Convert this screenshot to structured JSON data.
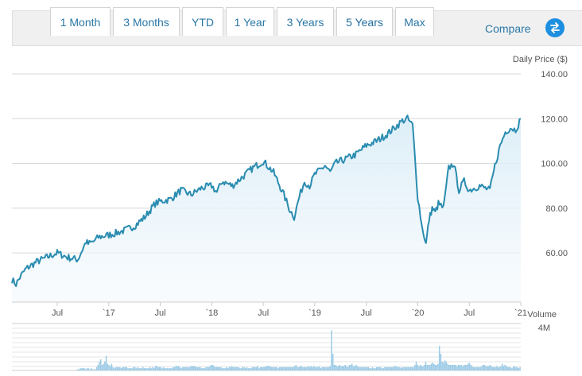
{
  "tabs": [
    {
      "label": "1 Month"
    },
    {
      "label": "3 Months"
    },
    {
      "label": "YTD"
    },
    {
      "label": "1 Year"
    },
    {
      "label": "3 Years"
    },
    {
      "label": "5 Years",
      "active": true
    },
    {
      "label": "Max"
    }
  ],
  "compare": {
    "label": "Compare",
    "icon": "swap-arrows-icon",
    "color": "#1d8fe0"
  },
  "chart_data": {
    "type": "area",
    "ylabel": "Daily Price ($)",
    "y_ticks": [
      "140.00",
      "120.00",
      "100.00",
      "80.00",
      "60.00"
    ],
    "ylim": [
      38,
      140
    ],
    "x_tick_labels": [
      "Jul",
      "`17",
      "Jul",
      "`18",
      "Jul",
      "`19",
      "Jul",
      "`20",
      "Jul",
      "`21"
    ],
    "x_tick_values": [
      2016.5,
      2017.0,
      2017.5,
      2018.0,
      2018.5,
      2019.0,
      2019.5,
      2020.0,
      2020.5,
      2021.0
    ],
    "xlim": [
      2016.06,
      2021.0
    ],
    "grid": true,
    "line_color": "#2a8cb0",
    "series": [
      {
        "x": [
          2016.06,
          2016.1,
          2016.15,
          2016.2,
          2016.3,
          2016.4,
          2016.5,
          2016.6,
          2016.7,
          2016.78,
          2016.8,
          2016.85,
          2016.9,
          2017.0,
          2017.08,
          2017.15,
          2017.25,
          2017.35,
          2017.45,
          2017.5,
          2017.6,
          2017.7,
          2017.8,
          2017.9,
          2018.0,
          2018.05,
          2018.1,
          2018.2,
          2018.3,
          2018.4,
          2018.5,
          2018.6,
          2018.7,
          2018.75,
          2018.8,
          2018.85,
          2018.9,
          2018.95,
          2019.0,
          2019.1,
          2019.15,
          2019.2,
          2019.3,
          2019.4,
          2019.5,
          2019.6,
          2019.7,
          2019.8,
          2019.85,
          2019.9,
          2019.95,
          2020.0,
          2020.04,
          2020.08,
          2020.11,
          2020.14,
          2020.17,
          2020.2,
          2020.25,
          2020.3,
          2020.35,
          2020.4,
          2020.45,
          2020.5,
          2020.6,
          2020.7,
          2020.75,
          2020.8,
          2020.85,
          2020.9,
          2020.95,
          2021.0
        ],
        "y": [
          48,
          46,
          50,
          53,
          56,
          58,
          60,
          58,
          57,
          65,
          64,
          65,
          67,
          68,
          69,
          70,
          72,
          76,
          82,
          83,
          84,
          88,
          86,
          89,
          90,
          87,
          92,
          90,
          94,
          98,
          101,
          96,
          86,
          80,
          76,
          85,
          92,
          90,
          95,
          99,
          96,
          100,
          102,
          104,
          108,
          110,
          113,
          117,
          119,
          120,
          117,
          85,
          72,
          64,
          75,
          80,
          78,
          82,
          80,
          98,
          100,
          88,
          92,
          88,
          90,
          88,
          99,
          108,
          114,
          116,
          115,
          120
        ]
      }
    ],
    "volume": {
      "label": "Volume",
      "max_label": "4M",
      "ylim": [
        0,
        4
      ],
      "color": "#9ccbe6",
      "values": [
        0.0,
        0.1,
        0.1,
        0.2,
        0.2,
        0.2,
        0.2,
        0.1,
        0.2,
        0.2,
        0.1,
        0.2,
        0.1,
        0.1,
        0.1,
        0.3,
        0.5,
        0.8,
        1.0,
        0.5,
        0.6,
        0.8,
        1.3,
        0.6,
        0.5,
        0.4,
        0.6,
        0.3,
        0.2,
        0.3,
        0.3,
        0.3,
        0.3,
        0.2,
        0.3,
        0.3,
        0.3,
        0.3,
        0.2,
        0.2,
        0.2,
        0.2,
        0.3,
        0.3,
        0.2,
        0.3,
        0.2,
        0.2,
        0.2,
        0.3,
        0.2,
        0.2,
        0.2,
        0.2,
        0.3,
        0.2,
        0.3,
        0.2,
        0.4,
        0.4,
        0.3,
        0.3,
        0.3,
        0.2,
        0.3,
        0.2,
        0.2,
        0.2,
        0.2,
        0.2,
        0.2,
        0.3,
        0.3,
        0.4,
        0.4,
        0.4,
        0.3,
        0.2,
        0.3,
        0.3,
        0.3,
        0.3,
        0.3,
        0.3,
        0.4,
        0.4,
        0.4,
        0.4,
        0.3,
        0.3,
        0.3,
        0.3,
        0.2,
        0.2,
        0.2,
        0.3,
        0.3,
        0.3,
        0.4,
        0.5,
        0.5,
        0.4,
        0.3,
        0.3,
        0.3,
        0.3,
        0.3,
        0.2,
        0.2,
        0.2,
        0.3,
        0.2,
        0.3,
        0.3,
        0.4,
        0.3,
        0.3,
        0.3,
        0.3,
        0.3,
        0.2,
        0.2,
        0.3,
        0.3,
        0.2,
        0.3,
        0.2,
        0.2,
        0.2,
        0.3,
        0.3,
        0.3,
        0.3,
        0.4,
        0.2,
        0.3,
        0.3,
        0.3,
        0.3,
        0.4,
        0.4,
        0.4,
        0.4,
        0.3,
        0.3,
        0.3,
        0.3,
        0.3,
        0.2,
        0.3,
        0.3,
        0.3,
        0.3,
        0.3,
        0.3,
        0.3,
        0.3,
        0.3,
        0.3,
        0.3,
        0.4,
        0.5,
        0.3,
        0.3,
        0.4,
        0.4,
        0.3,
        0.3,
        0.3,
        0.3,
        0.4,
        0.3,
        0.4,
        0.3,
        0.4,
        0.3,
        0.3,
        0.3,
        0.4,
        0.2,
        0.3,
        0.3,
        0.3,
        0.3,
        0.3,
        0.3,
        0.4,
        3.6,
        1.5,
        0.5,
        0.5,
        0.4,
        0.4,
        0.5,
        0.4,
        0.4,
        0.4,
        0.5,
        0.4,
        0.3,
        0.5,
        0.5,
        0.6,
        0.4,
        0.4,
        0.5,
        0.4,
        0.3,
        0.3,
        0.3,
        0.3,
        0.3,
        0.3,
        0.3,
        0.3,
        0.2,
        0.2,
        0.3,
        0.2,
        0.2,
        0.3,
        0.3,
        0.3,
        0.3,
        0.2,
        0.2,
        0.3,
        0.3,
        0.3,
        0.3,
        0.3,
        0.3,
        0.3,
        0.4,
        0.4,
        0.3,
        0.3,
        0.3,
        0.2,
        0.3,
        0.3,
        0.3,
        0.3,
        0.3,
        0.3,
        0.3,
        0.3,
        0.3,
        0.5,
        0.8,
        0.5,
        0.4,
        0.5,
        0.4,
        0.4,
        0.5,
        0.8,
        0.5,
        0.5,
        0.5,
        0.6,
        0.7,
        0.6,
        0.5,
        0.5,
        0.6,
        2.2,
        1.5,
        0.8,
        0.7,
        0.9,
        0.8,
        0.6,
        0.5,
        0.5,
        0.5,
        0.5,
        0.5,
        0.5,
        0.4,
        0.5,
        0.5,
        0.5,
        0.4,
        0.5,
        0.5,
        0.5,
        0.6,
        0.7,
        0.5,
        0.4,
        0.3,
        0.3,
        0.3,
        0.3,
        0.3,
        0.3,
        0.4,
        0.5,
        0.5,
        0.4,
        0.4,
        0.4,
        0.5,
        0.4,
        0.3,
        0.3,
        0.3,
        0.4,
        0.3,
        0.3,
        0.4,
        0.6,
        0.4,
        0.5,
        0.4,
        0.3,
        0.3,
        0.3,
        0.2,
        0.3,
        0.4,
        0.3,
        0.3,
        0.2,
        0.3
      ]
    }
  }
}
